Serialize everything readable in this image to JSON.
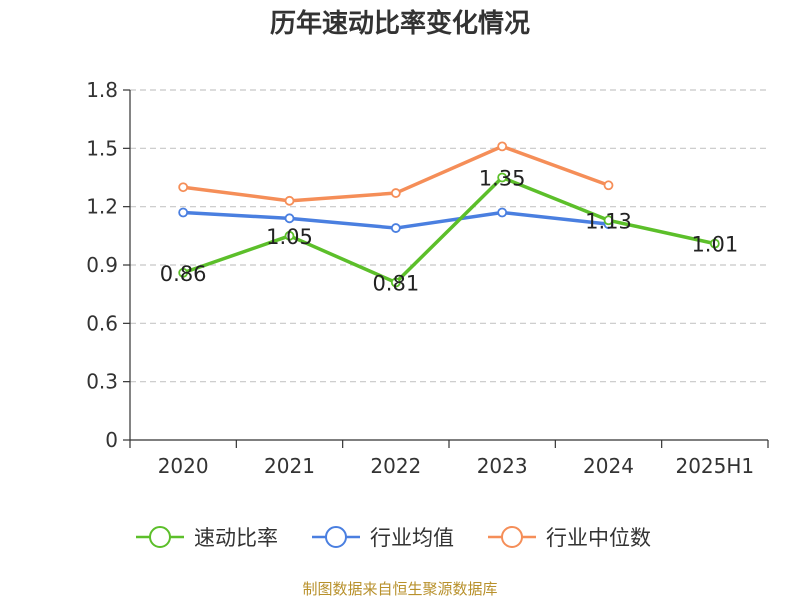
{
  "chart_data": {
    "type": "line",
    "title": "历年速动比率变化情况",
    "categories": [
      "2020",
      "2021",
      "2022",
      "2023",
      "2024",
      "2025H1"
    ],
    "y_ticks": [
      "0",
      "0.3",
      "0.6",
      "0.9",
      "1.2",
      "1.5",
      "1.8"
    ],
    "ylim": [
      0,
      1.8
    ],
    "grid": "horizontal dashed",
    "legend_position": "bottom",
    "series": [
      {
        "name": "速动比率",
        "color": "#5cbf2a",
        "values": [
          0.86,
          1.05,
          0.81,
          1.35,
          1.13,
          1.01
        ],
        "labels": [
          "0.86",
          "1.05",
          "0.81",
          "1.35",
          "1.13",
          "1.01"
        ]
      },
      {
        "name": "行业均值",
        "color": "#4a7fe0",
        "values": [
          1.17,
          1.14,
          1.09,
          1.17,
          1.11,
          null
        ]
      },
      {
        "name": "行业中位数",
        "color": "#f58e58",
        "values": [
          1.3,
          1.23,
          1.27,
          1.51,
          1.31,
          null
        ]
      }
    ]
  },
  "source": "制图数据来自恒生聚源数据库"
}
